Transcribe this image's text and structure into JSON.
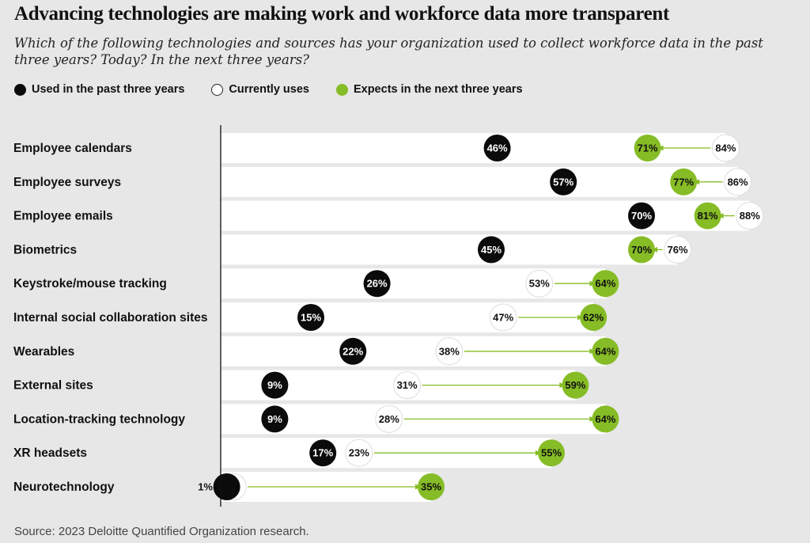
{
  "header": {
    "title": "Advancing technologies are making work and workforce data more transparent",
    "subtitle": "Which of the following technologies and sources has your organization used to collect workforce data in the past three years? Today? In the next three years?"
  },
  "legend": {
    "items": [
      {
        "label": "Used in the past three years",
        "color": "#0b0b0b"
      },
      {
        "label": "Currently uses",
        "color": "#ffffff"
      },
      {
        "label": "Expects in the next three years",
        "color": "#86bc25"
      }
    ]
  },
  "source": "Source: 2023 Deloitte Quantified Organization research.",
  "colors": {
    "past": "#0b0b0b",
    "current": "#ffffff",
    "expect": "#86bc25",
    "bar": "#ffffff",
    "background": "#e7e7e7"
  },
  "chart_data": {
    "type": "dot",
    "title": "Advancing technologies are making work and workforce data more transparent",
    "value_suffix": "%",
    "xlim": [
      0,
      100
    ],
    "categories": [
      "Employee calendars",
      "Employee surveys",
      "Employee emails",
      "Biometrics",
      "Keystroke/mouse tracking",
      "Internal social collaboration sites",
      "Wearables",
      "External sites",
      "Location-tracking technology",
      "XR headsets",
      "Neurotechnology"
    ],
    "series": [
      {
        "name": "Used in the past three years",
        "values": [
          46,
          57,
          70,
          45,
          26,
          15,
          22,
          9,
          9,
          17,
          1
        ]
      },
      {
        "name": "Currently uses",
        "values": [
          84,
          86,
          88,
          76,
          53,
          47,
          38,
          31,
          28,
          23,
          2
        ]
      },
      {
        "name": "Expects in the next three years",
        "values": [
          71,
          77,
          81,
          70,
          64,
          62,
          64,
          59,
          64,
          55,
          35
        ]
      }
    ]
  }
}
